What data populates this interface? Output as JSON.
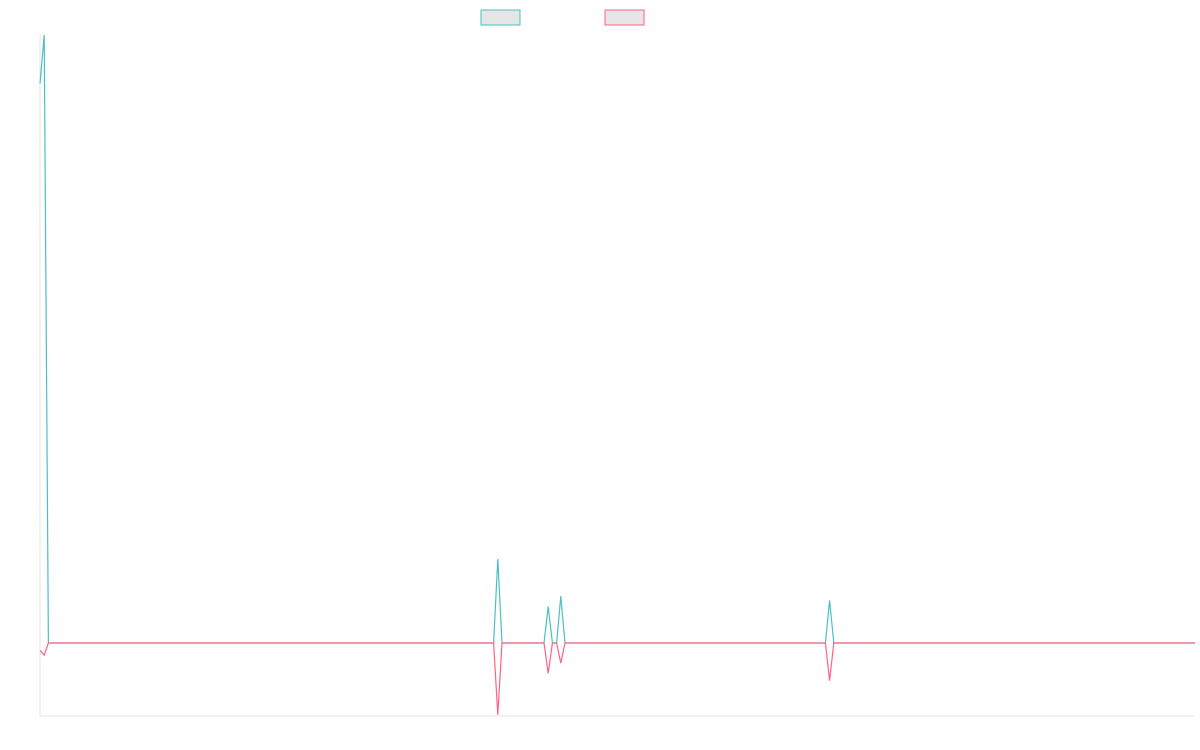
{
  "chart_data": {
    "type": "line",
    "x": [
      0,
      1,
      2,
      108,
      109,
      110,
      120,
      121,
      122,
      123,
      124,
      125,
      187,
      188,
      189,
      275
    ],
    "xlim": [
      0,
      275
    ],
    "ylim": [
      -12,
      100
    ],
    "series": [
      {
        "color": "#4bc0c0",
        "values": [
          92,
          100,
          0,
          0,
          13.8,
          0,
          0,
          6,
          0,
          0,
          7.7,
          0,
          0,
          7,
          0,
          0
        ]
      },
      {
        "color": "#ff6384",
        "values": [
          -1.2,
          -2,
          0,
          0,
          -11.8,
          0,
          0,
          -5,
          0,
          0,
          -3.3,
          0,
          0,
          -6.2,
          0,
          0
        ]
      }
    ]
  }
}
